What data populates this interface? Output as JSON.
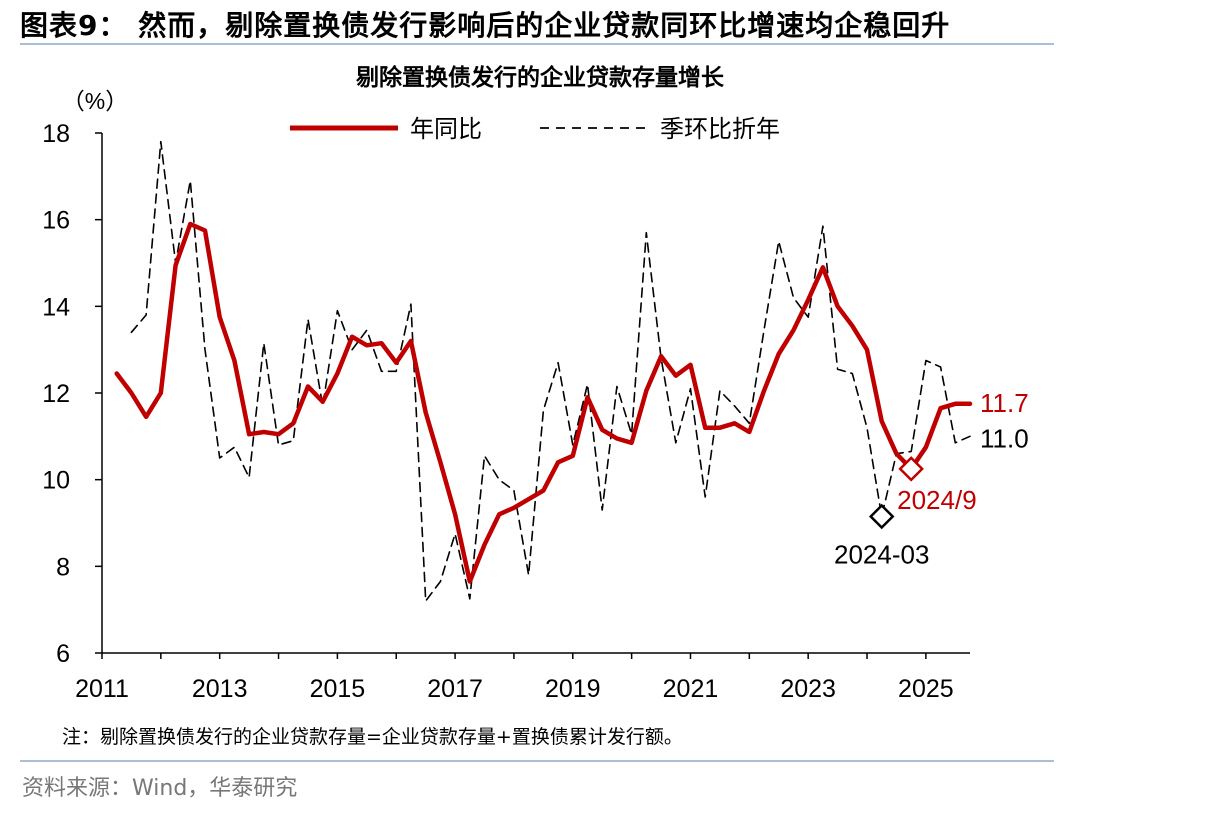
{
  "figure": {
    "title": "图表9： 然而，剔除置换债发行影响后的企业贷款同环比增速均企稳回升",
    "note": "注：剔除置换债发行的企业贷款存量=企业贷款存量+置换债累计发行额。",
    "source": "资料来源：Wind，华泰研究"
  },
  "chart_data": {
    "type": "line",
    "title": "剔除置换债发行的企业贷款存量增长",
    "ylabel": "（%）",
    "ylim": [
      6,
      18
    ],
    "yticks": [
      6,
      8,
      10,
      12,
      14,
      16,
      18
    ],
    "xlim": [
      2011.0,
      2025.75
    ],
    "xticks": [
      2011,
      2013,
      2015,
      2017,
      2019,
      2021,
      2023,
      2025
    ],
    "grid": false,
    "legend_position": "top-center",
    "series": [
      {
        "name": "年同比",
        "color": "#c00000",
        "style": "solid",
        "x": [
          2011.25,
          2011.5,
          2011.75,
          2012.0,
          2012.25,
          2012.5,
          2012.75,
          2013.0,
          2013.25,
          2013.5,
          2013.75,
          2014.0,
          2014.25,
          2014.5,
          2014.75,
          2015.0,
          2015.25,
          2015.5,
          2015.75,
          2016.0,
          2016.25,
          2016.5,
          2016.75,
          2017.0,
          2017.25,
          2017.5,
          2017.75,
          2018.0,
          2018.25,
          2018.5,
          2018.75,
          2019.0,
          2019.25,
          2019.5,
          2019.75,
          2020.0,
          2020.25,
          2020.5,
          2020.75,
          2021.0,
          2021.25,
          2021.5,
          2021.75,
          2022.0,
          2022.25,
          2022.5,
          2022.75,
          2023.0,
          2023.25,
          2023.5,
          2023.75,
          2024.0,
          2024.25,
          2024.5,
          2024.75,
          2025.0,
          2025.25,
          2025.5,
          2025.75
        ],
        "values": [
          12.45,
          12.0,
          11.45,
          12.0,
          14.95,
          15.9,
          15.75,
          13.75,
          12.75,
          11.05,
          11.1,
          11.05,
          11.3,
          12.15,
          11.8,
          12.45,
          13.3,
          13.1,
          13.15,
          12.7,
          13.2,
          11.55,
          10.4,
          9.2,
          7.65,
          8.5,
          9.2,
          9.35,
          9.55,
          9.75,
          10.4,
          10.55,
          11.9,
          11.15,
          10.95,
          10.85,
          12.05,
          12.85,
          12.4,
          12.65,
          11.2,
          11.2,
          11.3,
          11.1,
          12.05,
          12.9,
          13.45,
          14.15,
          14.9,
          14.0,
          13.55,
          13.0,
          11.35,
          10.6,
          10.25,
          10.75,
          11.65,
          11.75,
          11.75
        ]
      },
      {
        "name": "季环比折年",
        "color": "#000000",
        "style": "dashed",
        "x": [
          2011.5,
          2011.75,
          2012.0,
          2012.25,
          2012.5,
          2012.75,
          2013.0,
          2013.25,
          2013.5,
          2013.75,
          2014.0,
          2014.25,
          2014.5,
          2014.75,
          2015.0,
          2015.25,
          2015.5,
          2015.75,
          2016.0,
          2016.25,
          2016.5,
          2016.75,
          2017.0,
          2017.25,
          2017.5,
          2017.75,
          2018.0,
          2018.25,
          2018.5,
          2018.75,
          2019.0,
          2019.25,
          2019.5,
          2019.75,
          2020.0,
          2020.25,
          2020.5,
          2020.75,
          2021.0,
          2021.25,
          2021.5,
          2021.75,
          2022.0,
          2022.25,
          2022.5,
          2022.75,
          2023.0,
          2023.25,
          2023.5,
          2023.75,
          2024.0,
          2024.25,
          2024.5,
          2024.75,
          2025.0,
          2025.25,
          2025.5,
          2025.75
        ],
        "values": [
          13.4,
          13.8,
          17.8,
          15.0,
          16.9,
          13.0,
          10.5,
          10.75,
          10.05,
          13.15,
          10.8,
          10.9,
          13.7,
          11.7,
          13.9,
          13.0,
          13.45,
          12.5,
          12.5,
          14.05,
          7.2,
          7.65,
          8.75,
          7.25,
          10.55,
          10.0,
          9.75,
          7.8,
          11.6,
          12.7,
          10.8,
          12.2,
          9.3,
          12.15,
          11.05,
          15.7,
          12.8,
          10.85,
          12.1,
          9.6,
          12.05,
          11.7,
          11.3,
          13.45,
          15.5,
          14.2,
          13.75,
          15.85,
          12.55,
          12.45,
          11.2,
          9.15,
          10.6,
          10.65,
          12.75,
          12.6,
          10.85,
          11.0
        ]
      }
    ],
    "annotations": [
      {
        "label": "11.7",
        "series": "年同比",
        "color": "#c00000"
      },
      {
        "label": "11.0",
        "series": "季环比折年",
        "color": "#000000"
      },
      {
        "label": "2024/9",
        "x": 2024.75,
        "y": 10.25,
        "color": "#c00000",
        "marker": "diamond"
      },
      {
        "label": "2024-03",
        "x": 2024.25,
        "y": 9.15,
        "color": "#000000",
        "marker": "diamond"
      }
    ]
  }
}
